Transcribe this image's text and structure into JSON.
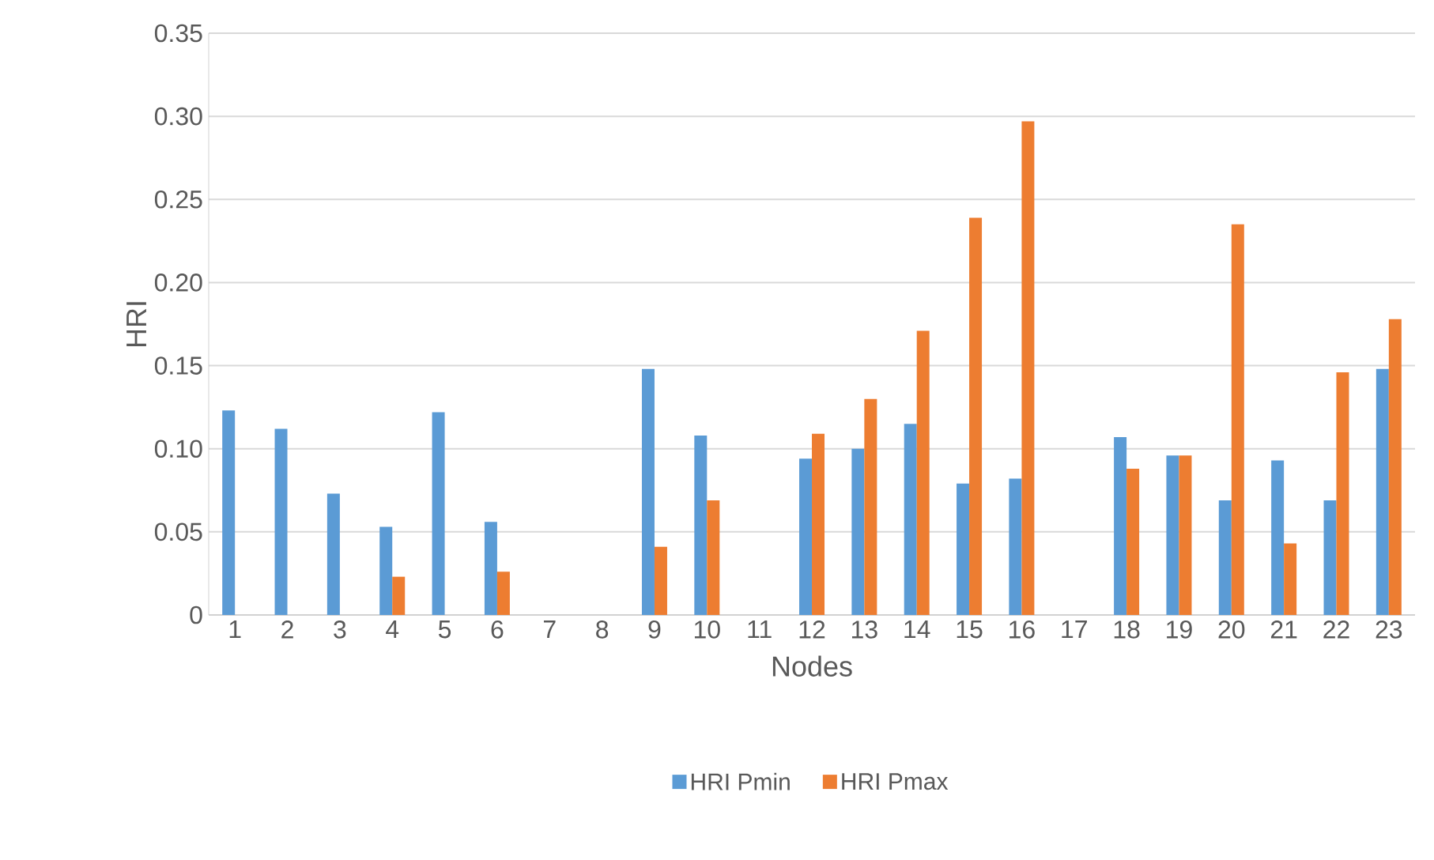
{
  "chart_data": {
    "type": "bar",
    "xlabel": "Nodes",
    "ylabel": "HRI",
    "categories": [
      "1",
      "2",
      "3",
      "4",
      "5",
      "6",
      "7",
      "8",
      "9",
      "10",
      "11",
      "12",
      "13",
      "14",
      "15",
      "16",
      "17",
      "18",
      "19",
      "20",
      "21",
      "22",
      "23"
    ],
    "series": [
      {
        "name": "HRI Pmin",
        "color": "#5b9bd5",
        "values": [
          0.123,
          0.112,
          0.073,
          0.053,
          0.122,
          0.056,
          null,
          null,
          0.148,
          0.108,
          null,
          0.094,
          0.1,
          0.115,
          0.079,
          0.082,
          null,
          0.107,
          0.096,
          0.069,
          0.093,
          0.069,
          0.148
        ]
      },
      {
        "name": "HRI Pmax",
        "color": "#ed7d31",
        "values": [
          null,
          null,
          null,
          0.023,
          null,
          0.026,
          null,
          null,
          0.041,
          0.069,
          null,
          0.109,
          0.13,
          0.171,
          0.239,
          0.297,
          null,
          0.088,
          0.096,
          0.235,
          0.043,
          0.146,
          0.178
        ]
      }
    ],
    "ylim": [
      0,
      0.35
    ],
    "yticks": [
      0,
      0.05,
      {
        "value": 0.1,
        "label": "0.10"
      },
      0.15,
      {
        "value": 0.2,
        "label": "0.20"
      },
      0.25,
      {
        "value": 0.3,
        "label": "0.30"
      },
      0.35
    ],
    "grid": "y",
    "legend": "bottom"
  }
}
